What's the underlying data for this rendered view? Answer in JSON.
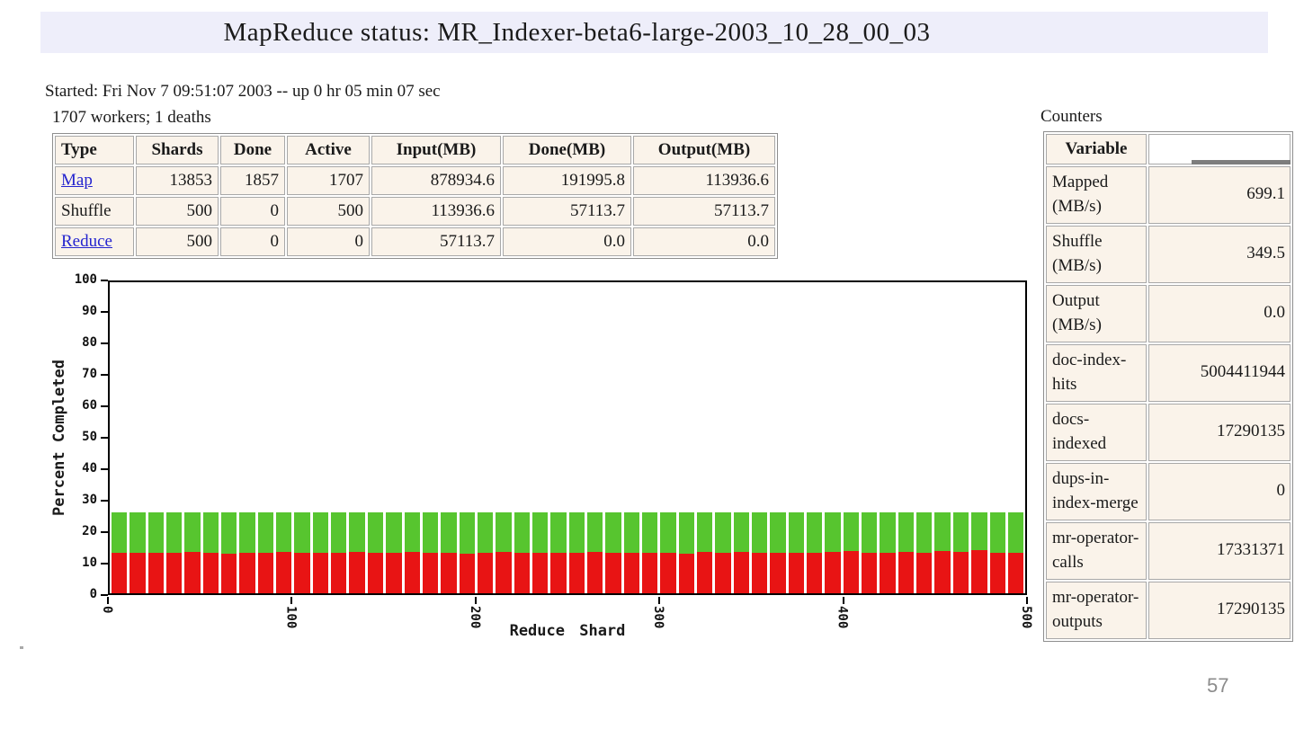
{
  "title_bar": {
    "title": "MapReduce status: MR_Indexer-beta6-large-2003_10_28_00_03"
  },
  "status": {
    "started_line": "Started: Fri Nov 7 09:51:07 2003 -- up 0 hr 05 min 07 sec",
    "workers_line": "1707 workers; 1 deaths"
  },
  "status_table": {
    "headers": [
      "Type",
      "Shards",
      "Done",
      "Active",
      "Input(MB)",
      "Done(MB)",
      "Output(MB)"
    ],
    "rows": [
      {
        "type": "Map",
        "is_link": true,
        "shards": "13853",
        "done": "1857",
        "active": "1707",
        "input_mb": "878934.6",
        "done_mb": "191995.8",
        "output_mb": "113936.6"
      },
      {
        "type": "Shuffle",
        "is_link": false,
        "shards": "500",
        "done": "0",
        "active": "500",
        "input_mb": "113936.6",
        "done_mb": "57113.7",
        "output_mb": "57113.7"
      },
      {
        "type": "Reduce",
        "is_link": true,
        "shards": "500",
        "done": "0",
        "active": "0",
        "input_mb": "57113.7",
        "done_mb": "0.0",
        "output_mb": "0.0"
      }
    ]
  },
  "counters": {
    "label": "Counters",
    "variable_header": "Variable",
    "rows": [
      {
        "name": "Mapped (MB/s)",
        "value": "699.1"
      },
      {
        "name": "Shuffle (MB/s)",
        "value": "349.5"
      },
      {
        "name": "Output (MB/s)",
        "value": "0.0"
      },
      {
        "name": "doc-index-hits",
        "value": "5004411944"
      },
      {
        "name": "docs-indexed",
        "value": "17290135"
      },
      {
        "name": "dups-in-index-merge",
        "value": "0"
      },
      {
        "name": "mr-operator-calls",
        "value": "17331371"
      },
      {
        "name": "mr-operator-outputs",
        "value": "17290135"
      }
    ]
  },
  "chart_data": {
    "type": "bar",
    "stacked": true,
    "title": "",
    "xlabel": "Reduce Shard",
    "ylabel": "Percent Completed",
    "xlim": [
      0,
      500
    ],
    "ylim": [
      0,
      100
    ],
    "xticks": [
      0,
      100,
      200,
      300,
      400,
      500
    ],
    "yticks": [
      0,
      10,
      20,
      30,
      40,
      50,
      60,
      70,
      80,
      90,
      100
    ],
    "grid": false,
    "legend": "none",
    "bars_shown": 50,
    "shards_per_bar": 10,
    "series": [
      {
        "name": "lower-segment-red",
        "color": "#e81414",
        "values": [
          13.0,
          13.1,
          12.9,
          13.0,
          13.2,
          13.0,
          12.8,
          13.1,
          13.0,
          13.2,
          12.9,
          13.0,
          13.1,
          13.3,
          13.0,
          12.9,
          13.2,
          13.0,
          13.1,
          12.8,
          13.0,
          13.3,
          13.0,
          12.9,
          13.1,
          13.0,
          13.2,
          12.9,
          13.0,
          13.1,
          13.0,
          12.8,
          13.2,
          13.0,
          13.3,
          13.0,
          12.9,
          13.1,
          13.0,
          13.2,
          13.5,
          12.9,
          13.0,
          13.3,
          13.0,
          13.6,
          13.2,
          13.8,
          13.0,
          13.1
        ]
      },
      {
        "name": "upper-segment-green",
        "color": "#57c52f",
        "values": [
          13.0,
          12.9,
          13.1,
          13.0,
          12.8,
          13.0,
          13.2,
          12.9,
          13.0,
          12.8,
          13.1,
          13.0,
          12.9,
          12.7,
          13.0,
          13.1,
          12.8,
          13.0,
          12.9,
          13.2,
          13.0,
          12.7,
          13.0,
          13.1,
          12.9,
          13.0,
          12.8,
          13.1,
          13.0,
          12.9,
          13.0,
          13.2,
          12.8,
          13.0,
          12.7,
          13.0,
          13.1,
          12.9,
          13.0,
          12.8,
          12.5,
          13.1,
          13.0,
          12.7,
          13.0,
          12.4,
          12.8,
          12.2,
          13.0,
          12.9
        ]
      }
    ]
  },
  "page_number": "57",
  "colors": {
    "title_bar_bg": "#eeeefa",
    "table_cell_bg": "#faf3ea",
    "bar_red": "#e81414",
    "bar_green": "#57c52f",
    "link": "#2424cf",
    "page_number": "#8c8c8c"
  }
}
